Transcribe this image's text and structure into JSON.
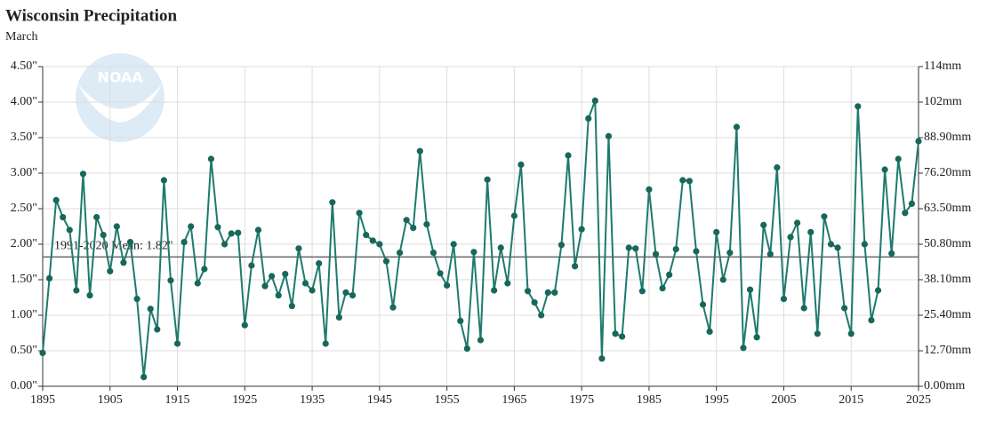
{
  "chart_data": {
    "type": "line",
    "title": "Wisconsin Precipitation",
    "subtitle": "March",
    "logo_text": "NOAA",
    "x": [
      1895,
      1896,
      1897,
      1898,
      1899,
      1900,
      1901,
      1902,
      1903,
      1904,
      1905,
      1906,
      1907,
      1908,
      1909,
      1910,
      1911,
      1912,
      1913,
      1914,
      1915,
      1916,
      1917,
      1918,
      1919,
      1920,
      1921,
      1922,
      1923,
      1924,
      1925,
      1926,
      1927,
      1928,
      1929,
      1930,
      1931,
      1932,
      1933,
      1934,
      1935,
      1936,
      1937,
      1938,
      1939,
      1940,
      1941,
      1942,
      1943,
      1944,
      1945,
      1946,
      1947,
      1948,
      1949,
      1950,
      1951,
      1952,
      1953,
      1954,
      1955,
      1956,
      1957,
      1958,
      1959,
      1960,
      1961,
      1962,
      1963,
      1964,
      1965,
      1966,
      1967,
      1968,
      1969,
      1970,
      1971,
      1972,
      1973,
      1974,
      1975,
      1976,
      1977,
      1978,
      1979,
      1980,
      1981,
      1982,
      1983,
      1984,
      1985,
      1986,
      1987,
      1988,
      1989,
      1990,
      1991,
      1992,
      1993,
      1994,
      1995,
      1996,
      1997,
      1998,
      1999,
      2000,
      2001,
      2002,
      2003,
      2004,
      2005,
      2006,
      2007,
      2008,
      2009,
      2010,
      2011,
      2012,
      2013,
      2014,
      2015,
      2016,
      2017,
      2018,
      2019,
      2020,
      2021,
      2022,
      2023,
      2024,
      2025
    ],
    "series": [
      {
        "color": "#1f7a6d",
        "values": [
          0.47,
          1.52,
          2.62,
          2.38,
          2.2,
          1.35,
          2.99,
          1.28,
          2.38,
          2.13,
          1.62,
          2.25,
          1.74,
          2.03,
          1.23,
          0.13,
          1.09,
          0.8,
          2.9,
          1.49,
          0.6,
          2.03,
          2.25,
          1.45,
          1.65,
          3.2,
          2.24,
          2.0,
          2.15,
          2.16,
          0.86,
          1.7,
          2.2,
          1.41,
          1.55,
          1.28,
          1.58,
          1.13,
          1.94,
          1.45,
          1.35,
          1.73,
          0.6,
          2.59,
          0.97,
          1.32,
          1.28,
          2.44,
          2.13,
          2.05,
          2.0,
          1.76,
          1.11,
          1.88,
          2.34,
          2.23,
          3.31,
          2.28,
          1.88,
          1.59,
          1.42,
          2.0,
          0.92,
          0.53,
          1.89,
          0.65,
          2.91,
          1.35,
          1.95,
          1.45,
          2.4,
          3.12,
          1.34,
          1.18,
          1.0,
          1.32,
          1.32,
          1.99,
          3.25,
          1.69,
          2.21,
          3.77,
          4.02,
          0.39,
          3.52,
          0.74,
          0.7,
          1.95,
          1.94,
          1.34,
          2.77,
          1.86,
          1.38,
          1.57,
          1.93,
          2.9,
          2.89,
          1.9,
          1.15,
          0.77,
          2.17,
          1.5,
          1.88,
          3.65,
          0.54,
          1.36,
          0.69,
          2.27,
          1.86,
          3.08,
          1.23,
          2.1,
          2.3,
          1.1,
          2.17,
          0.74,
          2.39,
          2.0,
          1.95,
          1.1,
          0.74,
          3.94,
          2.0,
          0.93,
          1.35,
          3.05,
          1.87,
          3.2,
          2.44,
          2.57,
          3.45
        ]
      }
    ],
    "mean": {
      "value": 1.82,
      "label": "1991-2020 Mean: 1.82\""
    },
    "xlim": [
      1895,
      2025
    ],
    "xticks": [
      1895,
      1905,
      1915,
      1925,
      1935,
      1945,
      1955,
      1965,
      1975,
      1985,
      1995,
      2005,
      2015,
      2025
    ],
    "ylim": [
      0,
      4.5
    ],
    "yticks": [
      {
        "value": 0,
        "label": "0.00\""
      },
      {
        "value": 0.5,
        "label": "0.50\""
      },
      {
        "value": 1,
        "label": "1.00\""
      },
      {
        "value": 1.5,
        "label": "1.50\""
      },
      {
        "value": 2,
        "label": "2.00\""
      },
      {
        "value": 2.5,
        "label": "2.50\""
      },
      {
        "value": 3,
        "label": "3.00\""
      },
      {
        "value": 3.5,
        "label": "3.50\""
      },
      {
        "value": 4,
        "label": "4.00\""
      },
      {
        "value": 4.5,
        "label": "4.50\""
      }
    ],
    "y2lim": [
      0,
      114.3
    ],
    "y2ticks": [
      {
        "value": 0,
        "label": "0.00mm"
      },
      {
        "value": 12.7,
        "label": "12.70mm"
      },
      {
        "value": 25.4,
        "label": "25.40mm"
      },
      {
        "value": 38.1,
        "label": "38.10mm"
      },
      {
        "value": 50.8,
        "label": "50.80mm"
      },
      {
        "value": 63.5,
        "label": "63.50mm"
      },
      {
        "value": 76.2,
        "label": "76.20mm"
      },
      {
        "value": 88.9,
        "label": "88.90mm"
      },
      {
        "value": 101.6,
        "label": "102mm"
      },
      {
        "value": 114.3,
        "label": "114mm"
      }
    ],
    "grid": true,
    "marker_color": "#18675b",
    "mean_color": "#666666"
  }
}
